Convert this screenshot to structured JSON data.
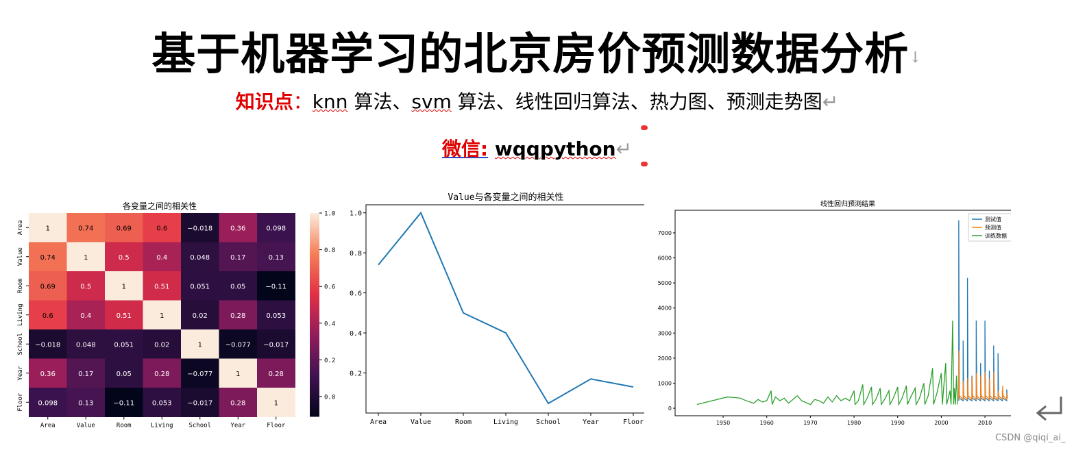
{
  "header": {
    "title": "基于机器学习的北京房价预测数据分析",
    "knowledge_label": "知识点",
    "knowledge_sep": "：",
    "knowledge_knn": "knn",
    "knowledge_a": " 算法、",
    "knowledge_svm": "svm",
    "knowledge_b": " 算法、线性回归算法、热力图、预测走势图",
    "wechat_label": "微信:",
    "wechat_id": "wqqpython"
  },
  "watermark": "CSDN @qiqi_ai_",
  "colors": {
    "line_blue": "#1f77b4",
    "line_orange": "#ff7f0e",
    "line_green": "#2ca02c",
    "title_red": "#e00000"
  },
  "chart_data": [
    {
      "type": "heatmap",
      "title": "各变量之间的相关性",
      "categories": [
        "Area",
        "Value",
        "Room",
        "Living",
        "School",
        "Year",
        "Floor"
      ],
      "values": [
        [
          1,
          0.74,
          0.69,
          0.6,
          -0.018,
          0.36,
          0.098
        ],
        [
          0.74,
          1,
          0.5,
          0.4,
          0.048,
          0.17,
          0.13
        ],
        [
          0.69,
          0.5,
          1,
          0.51,
          0.051,
          0.05,
          -0.11
        ],
        [
          0.6,
          0.4,
          0.51,
          1,
          0.02,
          0.28,
          0.053
        ],
        [
          -0.018,
          0.048,
          0.051,
          0.02,
          1,
          -0.077,
          -0.017
        ],
        [
          0.36,
          0.17,
          0.05,
          0.28,
          -0.077,
          1,
          0.28
        ],
        [
          0.098,
          0.13,
          -0.11,
          0.053,
          -0.017,
          0.28,
          1
        ]
      ],
      "labels": [
        [
          "1",
          "0.74",
          "0.69",
          "0.6",
          "−0.018",
          "0.36",
          "0.098"
        ],
        [
          "0.74",
          "1",
          "0.5",
          "0.4",
          "0.048",
          "0.17",
          "0.13"
        ],
        [
          "0.69",
          "0.5",
          "1",
          "0.51",
          "0.051",
          "0.05",
          "−0.11"
        ],
        [
          "0.6",
          "0.4",
          "0.51",
          "1",
          "0.02",
          "0.28",
          "0.053"
        ],
        [
          "−0.018",
          "0.048",
          "0.051",
          "0.02",
          "1",
          "−0.077",
          "−0.017"
        ],
        [
          "0.36",
          "0.17",
          "0.05",
          "0.28",
          "−0.077",
          "1",
          "0.28"
        ],
        [
          "0.098",
          "0.13",
          "−0.11",
          "0.053",
          "−0.017",
          "0.28",
          "1"
        ]
      ],
      "colorbar_ticks": [
        "1.0",
        "0.8",
        "0.6",
        "0.4",
        "0.2",
        "0.0"
      ],
      "colorbar_range": [
        -0.11,
        1.0
      ]
    },
    {
      "type": "line",
      "title": "Value与各变量之间的相关性",
      "categories": [
        "Area",
        "Value",
        "Room",
        "Living",
        "School",
        "Year",
        "Floor"
      ],
      "values": [
        0.74,
        1.0,
        0.5,
        0.4,
        0.048,
        0.17,
        0.13
      ],
      "ylim": [
        0.0,
        1.04
      ],
      "yticks": [
        "0.2",
        "0.4",
        "0.6",
        "0.8",
        "1.0"
      ]
    },
    {
      "type": "line",
      "title": "线性回归预测结果",
      "xlim": [
        1939,
        2018
      ],
      "ylim": [
        -300,
        7900
      ],
      "xticks": [
        "1950",
        "1960",
        "1970",
        "1980",
        "1990",
        "2000",
        "2010"
      ],
      "yticks": [
        "0",
        "1000",
        "2000",
        "3000",
        "4000",
        "5000",
        "6000",
        "7000"
      ],
      "legend_position": "top-right",
      "series": [
        {
          "name": "测试值"
        },
        {
          "name": "预测值"
        },
        {
          "name": "训练数据"
        }
      ],
      "spikes_test": [
        [
          2004,
          7500
        ],
        [
          2005,
          2700
        ],
        [
          2006,
          5200
        ],
        [
          2007,
          1300
        ],
        [
          2008,
          3500
        ],
        [
          2009,
          1800
        ],
        [
          2010,
          3500
        ],
        [
          2011,
          1500
        ],
        [
          2012,
          2500
        ],
        [
          2013,
          2200
        ],
        [
          2014,
          700
        ],
        [
          2015,
          750
        ]
      ],
      "spikes_pred": [
        [
          2004,
          2300
        ],
        [
          2005,
          1100
        ],
        [
          2006,
          1200
        ],
        [
          2007,
          1300
        ],
        [
          2008,
          1400
        ],
        [
          2009,
          1300
        ],
        [
          2010,
          1450
        ],
        [
          2011,
          1200
        ],
        [
          2012,
          1450
        ],
        [
          2013,
          700
        ],
        [
          2014,
          900
        ],
        [
          2015,
          600
        ]
      ],
      "train_points": [
        [
          1944,
          150
        ],
        [
          1951,
          450
        ],
        [
          1953,
          420
        ],
        [
          1954,
          400
        ],
        [
          1955,
          320
        ],
        [
          1957,
          200
        ],
        [
          1958,
          350
        ],
        [
          1959,
          250
        ],
        [
          1960,
          300
        ],
        [
          1961,
          700
        ],
        [
          1962,
          450
        ],
        [
          1963,
          300
        ],
        [
          1964,
          400
        ],
        [
          1965,
          200
        ],
        [
          1966,
          350
        ],
        [
          1967,
          500
        ],
        [
          1968,
          300
        ],
        [
          1970,
          150
        ],
        [
          1971,
          350
        ],
        [
          1972,
          300
        ],
        [
          1973,
          200
        ],
        [
          1974,
          450
        ],
        [
          1975,
          250
        ],
        [
          1976,
          500
        ],
        [
          1977,
          300
        ],
        [
          1978,
          400
        ],
        [
          1979,
          300
        ],
        [
          1980,
          700
        ],
        [
          1981,
          300
        ],
        [
          1982,
          950
        ],
        [
          1983,
          400
        ],
        [
          1984,
          850
        ],
        [
          1985,
          350
        ],
        [
          1986,
          800
        ],
        [
          1987,
          350
        ],
        [
          1988,
          700
        ],
        [
          1989,
          400
        ],
        [
          1990,
          850
        ],
        [
          1991,
          400
        ],
        [
          1992,
          900
        ],
        [
          1993,
          450
        ],
        [
          1994,
          800
        ],
        [
          1995,
          400
        ],
        [
          1996,
          1000
        ],
        [
          1997,
          500
        ],
        [
          1998,
          1600
        ],
        [
          1999,
          600
        ],
        [
          2000,
          1400
        ],
        [
          2001,
          1800
        ],
        [
          2002,
          700
        ],
        [
          2002.6,
          3500
        ],
        [
          2003,
          800
        ],
        [
          2003.5,
          1300
        ]
      ]
    }
  ]
}
